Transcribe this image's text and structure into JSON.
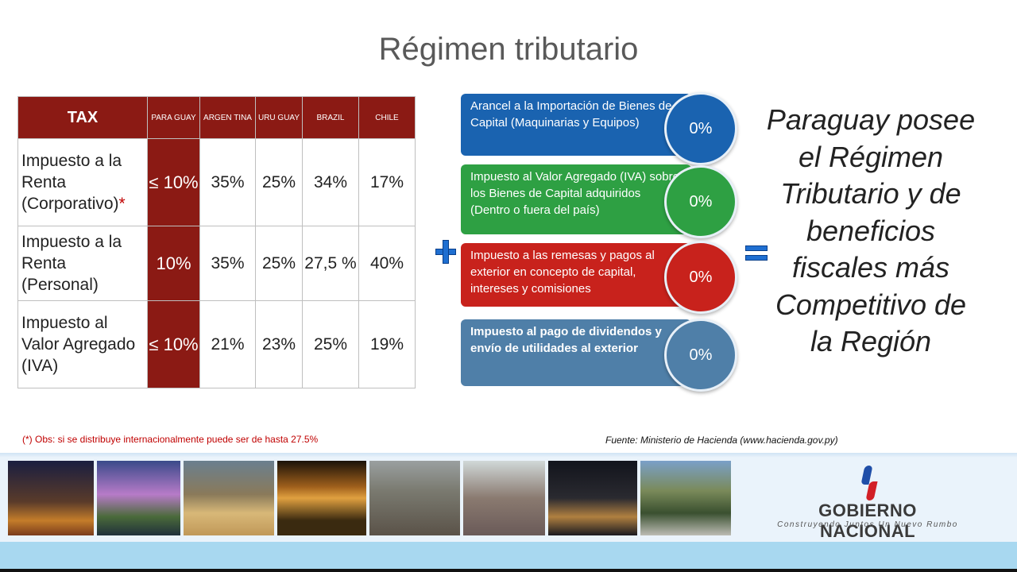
{
  "title": "Régimen tributario",
  "table": {
    "headers": [
      "TAX",
      "PARA GUAY",
      "ARGEN TINA",
      "URU GUAY",
      "BRAZIL",
      "CHILE"
    ],
    "rows": [
      {
        "label": "Impuesto a la Renta (Corporativo)",
        "marker": "*",
        "paraguay": "≤ 10%",
        "argentina": "35%",
        "uruguay": "25%",
        "brazil": "34%",
        "chile": "17%"
      },
      {
        "label": "Impuesto a la Renta (Personal)",
        "marker": "",
        "paraguay": "10%",
        "argentina": "35%",
        "uruguay": "25%",
        "brazil": "27,5 %",
        "chile": "40%"
      },
      {
        "label": "Impuesto al Valor Agregado (IVA)",
        "marker": "",
        "paraguay": "≤ 10%",
        "argentina": "21%",
        "uruguay": "23%",
        "brazil": "25%",
        "chile": "19%"
      }
    ]
  },
  "benefits": [
    {
      "text": "Arancel a la Importación de Bienes de Capital (Maquinarias y Equipos)",
      "value": "0%",
      "color": "#1a63b0"
    },
    {
      "text": "Impuesto al Valor Agregado (IVA) sobre los Bienes de Capital adquiridos (Dentro o fuera del país)",
      "value": "0%",
      "color": "#2ea043"
    },
    {
      "text": "Impuesto a las remesas y pagos al exterior en concepto de capital, intereses y comisiones",
      "value": "0%",
      "color": "#c8221c"
    },
    {
      "text": "Impuesto al pago de dividendos y envío de utilidades al exterior",
      "value": "0%",
      "color": "#4f7fa8"
    }
  ],
  "claim": "Paraguay posee el Régimen Tributario y de beneficios fiscales más Competitivo de la Región",
  "obs": "(*) Obs: si se distribuye internacionalmente puede ser de hasta 27.5%",
  "fuente": "Fuente: Ministerio de Hacienda (www.hacienda.gov.py)",
  "logo": {
    "brand": "GOBIERNO NACIONAL",
    "tagline": "Construyendo Juntos Un Nuevo Rumbo"
  },
  "colors": {
    "table_header": "#8b1a14",
    "accent_blue": "#1f6fd1",
    "obs_red": "#c00000"
  },
  "icons": [
    "plus-icon",
    "equals-icon"
  ]
}
